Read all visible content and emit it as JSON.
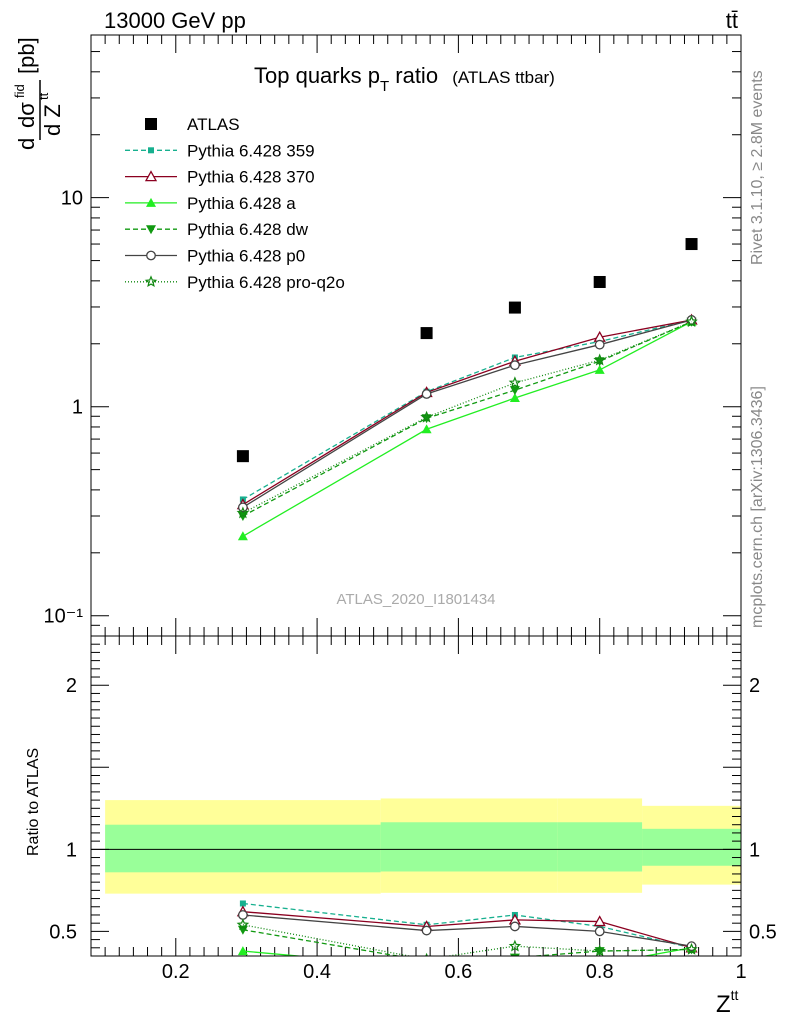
{
  "header": {
    "energy_label": "13000 GeV pp",
    "process_label": "tt̄"
  },
  "side_text": {
    "rivet": "Rivet 3.1.10, ≥ 2.8M events",
    "mcplots": "mcplots.cern.ch [arXiv:1306.3436]"
  },
  "watermark": "ATLAS_2020_I1801434",
  "chart_data": [
    {
      "type": "line",
      "title": "Top quarks p",
      "title_sub": "T",
      "title_rest": " ratio",
      "title_small": "(ATLAS ttbar)",
      "ylabel": "dσ/dZ (tt) [pb]",
      "yscale": "log",
      "ylim": [
        0.08,
        60
      ],
      "xlim": [
        0.08,
        1.0
      ],
      "y_tick_labels": [
        "10⁻¹",
        "1",
        "10"
      ],
      "legend_position": "top-left",
      "x": [
        0.295,
        0.555,
        0.68,
        0.8,
        0.93
      ],
      "series": [
        {
          "name": "ATLAS",
          "values": [
            0.58,
            2.25,
            2.98,
            3.95,
            6.0
          ],
          "color": "#000000",
          "marker": "square",
          "dash": "none"
        },
        {
          "name": "Pythia 6.428 359",
          "values": [
            0.36,
            1.18,
            1.72,
            2.05,
            2.6
          ],
          "color": "#17b08f",
          "marker": "small-square",
          "dash": "5,3"
        },
        {
          "name": "Pythia 6.428 370",
          "values": [
            0.34,
            1.17,
            1.65,
            2.15,
            2.6
          ],
          "color": "#8b0020",
          "marker": "open-triangle",
          "dash": "none"
        },
        {
          "name": "Pythia 6.428 a",
          "values": [
            0.24,
            0.78,
            1.1,
            1.5,
            2.55
          ],
          "color": "#22ee22",
          "marker": "triangle",
          "dash": "none"
        },
        {
          "name": "Pythia 6.428 dw",
          "values": [
            0.3,
            0.88,
            1.2,
            1.65,
            2.55
          ],
          "color": "#119911",
          "marker": "triangle-down",
          "dash": "5,3"
        },
        {
          "name": "Pythia 6.428 p0",
          "values": [
            0.33,
            1.15,
            1.58,
            1.98,
            2.6
          ],
          "color": "#444444",
          "marker": "open-circle",
          "dash": "none"
        },
        {
          "name": "Pythia 6.428 pro-q2o",
          "values": [
            0.31,
            0.89,
            1.3,
            1.67,
            2.55
          ],
          "color": "#118811",
          "marker": "star",
          "dash": "1,2"
        }
      ]
    },
    {
      "type": "line",
      "xlabel": "Z",
      "xlabel_sup": "tt",
      "ylabel": "Ratio to ATLAS",
      "ylim": [
        0.35,
        2.3
      ],
      "xlim": [
        0.08,
        1.0
      ],
      "x_tick_labels": [
        "0.2",
        "0.4",
        "0.6",
        "0.8",
        "1"
      ],
      "y_tick_labels": [
        "0.5",
        "1",
        "2"
      ],
      "bands": {
        "edges": [
          0.1,
          0.49,
          0.74,
          0.86,
          1.0
        ],
        "yellow_low": [
          0.73,
          0.735,
          0.735,
          0.785,
          0.745
        ],
        "yellow_high": [
          1.3,
          1.31,
          1.31,
          1.265,
          1.265
        ],
        "green_low": [
          0.86,
          0.865,
          0.865,
          0.9,
          0.88
        ],
        "green_high": [
          1.15,
          1.165,
          1.165,
          1.125,
          1.135
        ]
      },
      "series": [
        {
          "name": "Pythia 6.428 359",
          "values": [
            0.67,
            0.54,
            0.6,
            0.53,
            0.4
          ]
        },
        {
          "name": "Pythia 6.428 370",
          "values": [
            0.62,
            0.53,
            0.57,
            0.56,
            0.4
          ]
        },
        {
          "name": "Pythia 6.428 a",
          "values": [
            0.38,
            0.28,
            0.26,
            0.3,
            0.4
          ]
        },
        {
          "name": "Pythia 6.428 dw",
          "values": [
            0.51,
            0.32,
            0.34,
            0.38,
            0.39
          ]
        },
        {
          "name": "Pythia 6.428 p0",
          "values": [
            0.6,
            0.505,
            0.53,
            0.5,
            0.41
          ]
        },
        {
          "name": "Pythia 6.428 pro-q2o",
          "values": [
            0.54,
            0.33,
            0.41,
            0.38,
            0.39
          ]
        }
      ]
    }
  ]
}
